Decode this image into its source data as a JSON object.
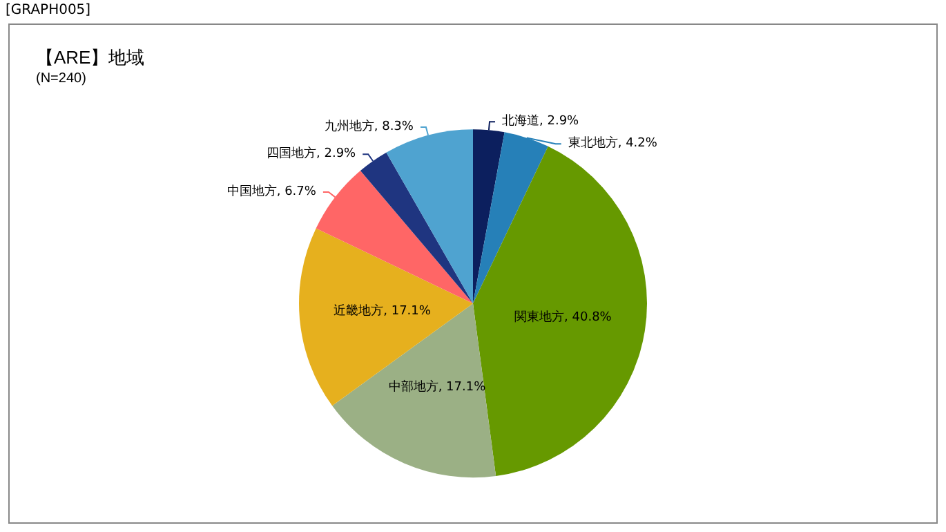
{
  "chart_data": {
    "type": "pie",
    "title": "【ARE】地域",
    "subtitle": "(N=240)",
    "annotations": [
      "[GRAPH005]"
    ],
    "categories": [
      "北海道",
      "東北地方",
      "関東地方",
      "中部地方",
      "近畿地方",
      "中国地方",
      "四国地方",
      "九州地方"
    ],
    "values": [
      2.9,
      4.2,
      40.8,
      17.1,
      17.1,
      6.7,
      2.9,
      8.3
    ],
    "value_labels": [
      "2.9%",
      "4.2%",
      "40.8%",
      "17.1%",
      "17.1%",
      "6.7%",
      "2.9%",
      "8.3%"
    ],
    "colors": [
      "#0c1f5e",
      "#2680b8",
      "#669900",
      "#9bb085",
      "#e6b01e",
      "#ff6666",
      "#1f3580",
      "#4fa3d0"
    ],
    "legend": false
  }
}
